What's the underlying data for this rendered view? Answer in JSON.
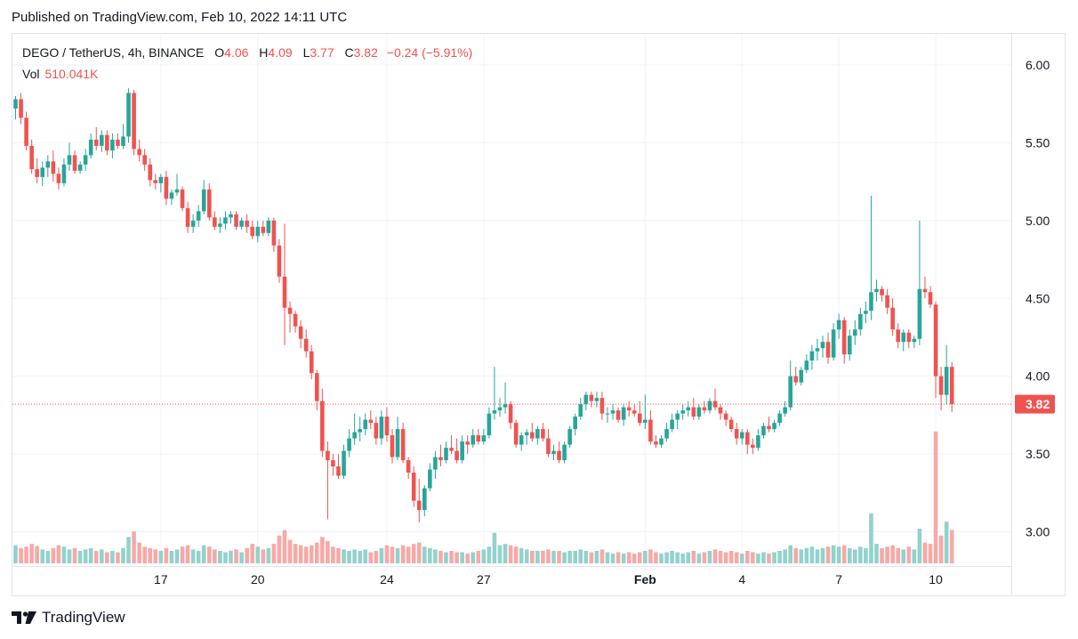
{
  "published": "Published on TradingView.com, Feb 10, 2022 14:11 UTC",
  "legend": {
    "symbol": "DEGO / TetherUS, 4h, BINANCE",
    "o_label": "O",
    "o": "4.06",
    "h_label": "H",
    "h": "4.09",
    "l_label": "L",
    "l": "3.77",
    "c_label": "C",
    "c": "3.82",
    "change": "−0.24 (−5.91%)",
    "vol_label": "Vol",
    "vol": "510.041K"
  },
  "price_badge": "3.82",
  "footer": {
    "brand": "TradingView"
  },
  "colors": {
    "up": "#26a69a",
    "down": "#ef5350",
    "up_vol": "#92d2cc",
    "down_vol": "#f7a9a7",
    "grid": "#f0f3fa",
    "badge": "#ef5350"
  },
  "chart_data": {
    "type": "candlestick",
    "title": "DEGO / TetherUS, 4h, BINANCE",
    "ylim": [
      2.78,
      6.2
    ],
    "y_ticks": [
      "6.00",
      "5.50",
      "5.00",
      "4.50",
      "4.00",
      "3.50",
      "3.00"
    ],
    "y_tick_values": [
      6.0,
      5.5,
      5.0,
      4.5,
      4.0,
      3.5,
      3.0
    ],
    "x_ticks": [
      {
        "label": "17",
        "index": 27,
        "bold": false
      },
      {
        "label": "20",
        "index": 45,
        "bold": false
      },
      {
        "label": "24",
        "index": 69,
        "bold": false
      },
      {
        "label": "27",
        "index": 87,
        "bold": false
      },
      {
        "label": "Feb",
        "index": 117,
        "bold": true
      },
      {
        "label": "4",
        "index": 135,
        "bold": false
      },
      {
        "label": "7",
        "index": 153,
        "bold": false
      },
      {
        "label": "10",
        "index": 171,
        "bold": false
      }
    ],
    "last_price": 3.82,
    "candles": [
      [
        5.72,
        5.8,
        5.65,
        5.78,
        26
      ],
      [
        5.78,
        5.82,
        5.62,
        5.66,
        22
      ],
      [
        5.66,
        5.7,
        5.45,
        5.48,
        24
      ],
      [
        5.48,
        5.52,
        5.3,
        5.33,
        28
      ],
      [
        5.33,
        5.4,
        5.24,
        5.28,
        25
      ],
      [
        5.28,
        5.38,
        5.22,
        5.34,
        20
      ],
      [
        5.34,
        5.42,
        5.28,
        5.38,
        18
      ],
      [
        5.38,
        5.45,
        5.25,
        5.3,
        22
      ],
      [
        5.3,
        5.34,
        5.2,
        5.24,
        26
      ],
      [
        5.24,
        5.4,
        5.22,
        5.36,
        24
      ],
      [
        5.36,
        5.5,
        5.32,
        5.42,
        20
      ],
      [
        5.42,
        5.45,
        5.3,
        5.32,
        22
      ],
      [
        5.32,
        5.38,
        5.3,
        5.36,
        18
      ],
      [
        5.36,
        5.46,
        5.32,
        5.42,
        20
      ],
      [
        5.42,
        5.56,
        5.4,
        5.52,
        22
      ],
      [
        5.52,
        5.6,
        5.45,
        5.48,
        18
      ],
      [
        5.48,
        5.58,
        5.44,
        5.55,
        20
      ],
      [
        5.55,
        5.58,
        5.42,
        5.45,
        16
      ],
      [
        5.45,
        5.56,
        5.4,
        5.52,
        18
      ],
      [
        5.52,
        5.56,
        5.46,
        5.48,
        16
      ],
      [
        5.48,
        5.62,
        5.46,
        5.54,
        22
      ],
      [
        5.54,
        5.85,
        5.5,
        5.82,
        38
      ],
      [
        5.82,
        5.84,
        5.42,
        5.46,
        46
      ],
      [
        5.46,
        5.52,
        5.38,
        5.42,
        30
      ],
      [
        5.42,
        5.46,
        5.32,
        5.36,
        24
      ],
      [
        5.36,
        5.4,
        5.22,
        5.26,
        22
      ],
      [
        5.26,
        5.3,
        5.2,
        5.24,
        20
      ],
      [
        5.24,
        5.3,
        5.18,
        5.28,
        18
      ],
      [
        5.28,
        5.32,
        5.1,
        5.14,
        22
      ],
      [
        5.14,
        5.2,
        5.1,
        5.18,
        18
      ],
      [
        5.18,
        5.3,
        5.16,
        5.2,
        20
      ],
      [
        5.2,
        5.22,
        5.06,
        5.08,
        24
      ],
      [
        5.08,
        5.12,
        4.92,
        4.96,
        26
      ],
      [
        4.96,
        5.04,
        4.92,
        5.0,
        20
      ],
      [
        5.0,
        5.1,
        4.96,
        5.06,
        18
      ],
      [
        5.06,
        5.26,
        5.04,
        5.2,
        26
      ],
      [
        5.2,
        5.24,
        5.0,
        5.02,
        24
      ],
      [
        5.02,
        5.06,
        4.94,
        4.96,
        20
      ],
      [
        4.96,
        5.02,
        4.92,
        4.98,
        18
      ],
      [
        4.98,
        5.06,
        4.94,
        5.02,
        16
      ],
      [
        5.02,
        5.06,
        4.98,
        5.04,
        18
      ],
      [
        5.04,
        5.06,
        4.94,
        4.96,
        20
      ],
      [
        4.96,
        5.02,
        4.94,
        5.0,
        16
      ],
      [
        5.0,
        5.04,
        4.92,
        4.96,
        22
      ],
      [
        4.96,
        5.0,
        4.88,
        4.9,
        28
      ],
      [
        4.9,
        5.0,
        4.86,
        4.96,
        24
      ],
      [
        4.96,
        5.0,
        4.9,
        4.92,
        20
      ],
      [
        4.92,
        5.02,
        4.9,
        5.0,
        22
      ],
      [
        5.0,
        5.02,
        4.8,
        4.84,
        28
      ],
      [
        4.84,
        4.88,
        4.6,
        4.64,
        40
      ],
      [
        4.64,
        4.98,
        4.2,
        4.44,
        48
      ],
      [
        4.44,
        4.48,
        4.28,
        4.4,
        34
      ],
      [
        4.4,
        4.42,
        4.28,
        4.32,
        28
      ],
      [
        4.32,
        4.36,
        4.18,
        4.24,
        26
      ],
      [
        4.24,
        4.3,
        4.12,
        4.16,
        24
      ],
      [
        4.16,
        4.2,
        3.98,
        4.02,
        26
      ],
      [
        4.02,
        4.04,
        3.78,
        3.84,
        30
      ],
      [
        3.84,
        3.92,
        3.48,
        3.52,
        38
      ],
      [
        3.52,
        3.58,
        3.08,
        3.46,
        32
      ],
      [
        3.46,
        3.5,
        3.36,
        3.42,
        24
      ],
      [
        3.42,
        3.5,
        3.34,
        3.36,
        22
      ],
      [
        3.36,
        3.56,
        3.34,
        3.52,
        20
      ],
      [
        3.52,
        3.66,
        3.48,
        3.6,
        18
      ],
      [
        3.6,
        3.76,
        3.56,
        3.64,
        20
      ],
      [
        3.64,
        3.74,
        3.58,
        3.66,
        18
      ],
      [
        3.66,
        3.76,
        3.62,
        3.72,
        20
      ],
      [
        3.72,
        3.78,
        3.66,
        3.7,
        16
      ],
      [
        3.7,
        3.74,
        3.56,
        3.6,
        18
      ],
      [
        3.6,
        3.78,
        3.56,
        3.74,
        22
      ],
      [
        3.74,
        3.8,
        3.58,
        3.62,
        26
      ],
      [
        3.62,
        3.66,
        3.44,
        3.48,
        24
      ],
      [
        3.48,
        3.74,
        3.46,
        3.66,
        22
      ],
      [
        3.66,
        3.7,
        3.44,
        3.46,
        26
      ],
      [
        3.46,
        3.48,
        3.34,
        3.38,
        24
      ],
      [
        3.38,
        3.42,
        3.16,
        3.2,
        28
      ],
      [
        3.2,
        3.34,
        3.06,
        3.14,
        30
      ],
      [
        3.14,
        3.3,
        3.1,
        3.28,
        24
      ],
      [
        3.28,
        3.44,
        3.26,
        3.4,
        22
      ],
      [
        3.4,
        3.52,
        3.34,
        3.48,
        20
      ],
      [
        3.48,
        3.56,
        3.42,
        3.46,
        18
      ],
      [
        3.46,
        3.58,
        3.44,
        3.54,
        16
      ],
      [
        3.54,
        3.62,
        3.5,
        3.52,
        18
      ],
      [
        3.52,
        3.6,
        3.44,
        3.46,
        16
      ],
      [
        3.46,
        3.62,
        3.44,
        3.58,
        16
      ],
      [
        3.58,
        3.62,
        3.5,
        3.56,
        14
      ],
      [
        3.56,
        3.66,
        3.54,
        3.62,
        16
      ],
      [
        3.62,
        3.66,
        3.56,
        3.58,
        18
      ],
      [
        3.58,
        3.66,
        3.56,
        3.62,
        20
      ],
      [
        3.62,
        3.8,
        3.6,
        3.76,
        24
      ],
      [
        3.76,
        4.06,
        3.72,
        3.78,
        44
      ],
      [
        3.78,
        3.86,
        3.74,
        3.8,
        26
      ],
      [
        3.8,
        3.96,
        3.76,
        3.82,
        28
      ],
      [
        3.82,
        3.84,
        3.66,
        3.7,
        26
      ],
      [
        3.7,
        3.72,
        3.54,
        3.56,
        24
      ],
      [
        3.56,
        3.64,
        3.52,
        3.62,
        22
      ],
      [
        3.62,
        3.66,
        3.56,
        3.64,
        20
      ],
      [
        3.64,
        3.7,
        3.58,
        3.6,
        18
      ],
      [
        3.6,
        3.68,
        3.56,
        3.66,
        18
      ],
      [
        3.66,
        3.7,
        3.58,
        3.6,
        18
      ],
      [
        3.6,
        3.66,
        3.48,
        3.5,
        20
      ],
      [
        3.5,
        3.56,
        3.46,
        3.52,
        18
      ],
      [
        3.52,
        3.58,
        3.44,
        3.46,
        18
      ],
      [
        3.46,
        3.58,
        3.44,
        3.56,
        16
      ],
      [
        3.56,
        3.68,
        3.54,
        3.66,
        18
      ],
      [
        3.66,
        3.76,
        3.62,
        3.74,
        18
      ],
      [
        3.74,
        3.86,
        3.72,
        3.82,
        20
      ],
      [
        3.82,
        3.9,
        3.78,
        3.88,
        18
      ],
      [
        3.88,
        3.9,
        3.8,
        3.84,
        16
      ],
      [
        3.84,
        3.9,
        3.8,
        3.86,
        18
      ],
      [
        3.86,
        3.9,
        3.72,
        3.76,
        20
      ],
      [
        3.76,
        3.8,
        3.7,
        3.76,
        16
      ],
      [
        3.76,
        3.82,
        3.72,
        3.78,
        14
      ],
      [
        3.78,
        3.8,
        3.7,
        3.72,
        16
      ],
      [
        3.72,
        3.82,
        3.68,
        3.8,
        14
      ],
      [
        3.8,
        3.84,
        3.74,
        3.78,
        16
      ],
      [
        3.78,
        3.82,
        3.74,
        3.76,
        14
      ],
      [
        3.76,
        3.84,
        3.68,
        3.7,
        16
      ],
      [
        3.7,
        3.88,
        3.66,
        3.72,
        18
      ],
      [
        3.72,
        3.78,
        3.56,
        3.58,
        20
      ],
      [
        3.58,
        3.62,
        3.54,
        3.56,
        16
      ],
      [
        3.56,
        3.62,
        3.54,
        3.6,
        14
      ],
      [
        3.6,
        3.7,
        3.58,
        3.66,
        16
      ],
      [
        3.66,
        3.76,
        3.64,
        3.72,
        18
      ],
      [
        3.72,
        3.78,
        3.66,
        3.76,
        16
      ],
      [
        3.76,
        3.82,
        3.72,
        3.78,
        14
      ],
      [
        3.78,
        3.84,
        3.74,
        3.8,
        16
      ],
      [
        3.8,
        3.86,
        3.72,
        3.74,
        18
      ],
      [
        3.74,
        3.82,
        3.72,
        3.8,
        14
      ],
      [
        3.8,
        3.84,
        3.76,
        3.78,
        16
      ],
      [
        3.78,
        3.86,
        3.76,
        3.84,
        18
      ],
      [
        3.84,
        3.92,
        3.78,
        3.8,
        20
      ],
      [
        3.8,
        3.82,
        3.72,
        3.76,
        18
      ],
      [
        3.76,
        3.78,
        3.68,
        3.72,
        16
      ],
      [
        3.72,
        3.74,
        3.64,
        3.66,
        18
      ],
      [
        3.66,
        3.7,
        3.56,
        3.6,
        16
      ],
      [
        3.6,
        3.66,
        3.56,
        3.64,
        14
      ],
      [
        3.64,
        3.66,
        3.5,
        3.56,
        18
      ],
      [
        3.56,
        3.6,
        3.5,
        3.54,
        16
      ],
      [
        3.54,
        3.66,
        3.52,
        3.62,
        14
      ],
      [
        3.62,
        3.7,
        3.6,
        3.68,
        16
      ],
      [
        3.68,
        3.74,
        3.64,
        3.66,
        14
      ],
      [
        3.66,
        3.72,
        3.64,
        3.7,
        16
      ],
      [
        3.7,
        3.78,
        3.68,
        3.76,
        18
      ],
      [
        3.76,
        3.84,
        3.74,
        3.8,
        20
      ],
      [
        3.8,
        4.1,
        3.78,
        4.0,
        26
      ],
      [
        4.0,
        4.06,
        3.94,
        3.96,
        22
      ],
      [
        3.96,
        4.06,
        3.94,
        4.04,
        20
      ],
      [
        4.04,
        4.14,
        4.02,
        4.1,
        22
      ],
      [
        4.1,
        4.2,
        4.04,
        4.16,
        24
      ],
      [
        4.16,
        4.24,
        4.1,
        4.18,
        20
      ],
      [
        4.18,
        4.26,
        4.12,
        4.22,
        22
      ],
      [
        4.22,
        4.28,
        4.08,
        4.12,
        24
      ],
      [
        4.12,
        4.34,
        4.1,
        4.3,
        26
      ],
      [
        4.3,
        4.4,
        4.24,
        4.36,
        24
      ],
      [
        4.36,
        4.38,
        4.08,
        4.14,
        26
      ],
      [
        4.14,
        4.3,
        4.1,
        4.26,
        22
      ],
      [
        4.26,
        4.36,
        4.2,
        4.3,
        20
      ],
      [
        4.3,
        4.44,
        4.26,
        4.4,
        24
      ],
      [
        4.4,
        4.48,
        4.34,
        4.42,
        22
      ],
      [
        4.42,
        5.16,
        4.36,
        4.54,
        72
      ],
      [
        4.54,
        4.62,
        4.48,
        4.56,
        28
      ],
      [
        4.56,
        4.58,
        4.48,
        4.52,
        22
      ],
      [
        4.52,
        4.56,
        4.4,
        4.44,
        24
      ],
      [
        4.44,
        4.5,
        4.26,
        4.3,
        26
      ],
      [
        4.3,
        4.34,
        4.18,
        4.22,
        22
      ],
      [
        4.22,
        4.3,
        4.16,
        4.28,
        20
      ],
      [
        4.28,
        4.3,
        4.18,
        4.22,
        24
      ],
      [
        4.22,
        4.26,
        4.18,
        4.24,
        20
      ],
      [
        4.24,
        5.0,
        4.2,
        4.56,
        50
      ],
      [
        4.56,
        4.64,
        4.5,
        4.54,
        30
      ],
      [
        4.54,
        4.58,
        4.44,
        4.46,
        28
      ],
      [
        4.46,
        4.48,
        3.86,
        4.0,
        190
      ],
      [
        4.0,
        4.06,
        3.78,
        3.88,
        40
      ],
      [
        3.88,
        4.2,
        3.82,
        4.06,
        60
      ],
      [
        4.06,
        4.09,
        3.77,
        3.82,
        48
      ]
    ]
  }
}
